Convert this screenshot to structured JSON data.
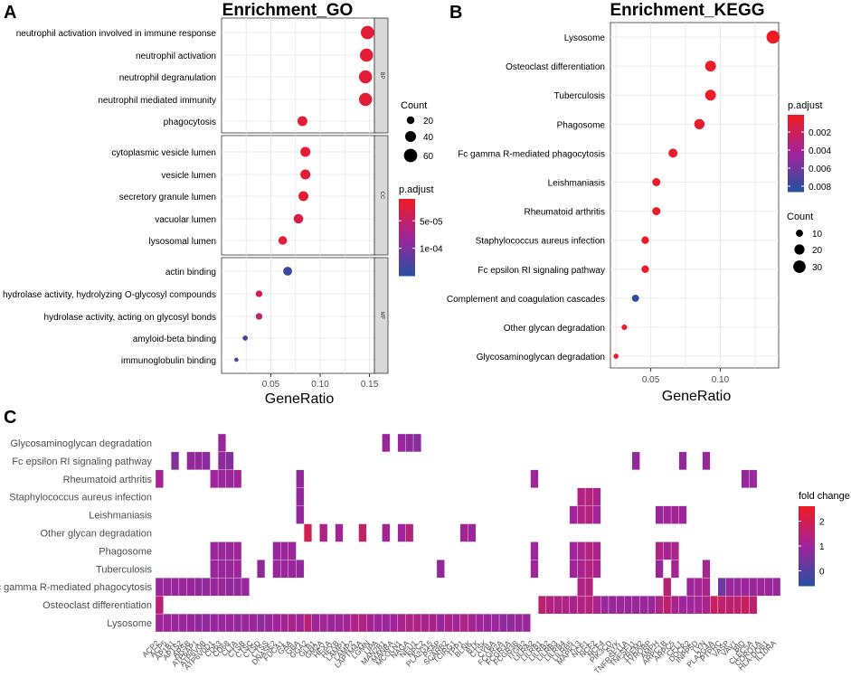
{
  "panels": {
    "a": "A",
    "b": "B",
    "c": "C"
  },
  "colors": {
    "high": "#ee1c25",
    "mid": "#a0249a",
    "low": "#2a4fa3",
    "mid2": "#7a2d9b"
  },
  "chart_data": [
    {
      "type": "scatter",
      "title": "Enrichment_GO",
      "xlabel": "GeneRatio",
      "xlim": [
        0.0,
        0.155
      ],
      "xticks": [
        "0.05",
        "0.10",
        "0.15"
      ],
      "xtick_values": [
        0.05,
        0.1,
        0.15
      ],
      "facets": [
        {
          "name": "BP",
          "terms": [
            {
              "label": "neutrophil activation involved in immune response",
              "x": 0.148,
              "count": 60,
              "p": 2e-05
            },
            {
              "label": "neutrophil activation",
              "x": 0.147,
              "count": 59,
              "p": 2e-05
            },
            {
              "label": "neutrophil degranulation",
              "x": 0.146,
              "count": 58,
              "p": 2e-05
            },
            {
              "label": "neutrophil mediated immunity",
              "x": 0.146,
              "count": 58,
              "p": 2e-05
            },
            {
              "label": "phagocytosis",
              "x": 0.082,
              "count": 33,
              "p": 2e-05
            }
          ]
        },
        {
          "name": "CC",
          "terms": [
            {
              "label": "cytoplasmic vesicle lumen",
              "x": 0.085,
              "count": 34,
              "p": 2e-05
            },
            {
              "label": "vesicle lumen",
              "x": 0.085,
              "count": 34,
              "p": 2e-05
            },
            {
              "label": "secretory granule lumen",
              "x": 0.083,
              "count": 33,
              "p": 2e-05
            },
            {
              "label": "vacuolar lumen",
              "x": 0.078,
              "count": 31,
              "p": 3e-05
            },
            {
              "label": "lysosomal lumen",
              "x": 0.062,
              "count": 25,
              "p": 2e-05
            }
          ]
        },
        {
          "name": "MF",
          "terms": [
            {
              "label": "actin binding",
              "x": 0.067,
              "count": 27,
              "p": 0.00014
            },
            {
              "label": "hydrolase activity, hydrolyzing O-glycosyl compounds",
              "x": 0.038,
              "count": 15,
              "p": 3e-05
            },
            {
              "label": "hydrolase activity, acting on glycosyl bonds",
              "x": 0.038,
              "count": 15,
              "p": 5e-05
            },
            {
              "label": "amyloid-beta binding",
              "x": 0.024,
              "count": 9,
              "p": 0.00013
            },
            {
              "label": "immunoglobulin binding",
              "x": 0.015,
              "count": 6,
              "p": 0.00013
            }
          ]
        }
      ],
      "size_legend": {
        "title": "Count",
        "values": [
          20,
          40,
          60
        ],
        "labels": [
          "20",
          "40",
          "60"
        ]
      },
      "color_legend": {
        "title": "p.adjust",
        "range": [
          1e-05,
          0.00015
        ],
        "labels": [
          "5e-05",
          "1e-04"
        ],
        "values": [
          5e-05,
          0.0001
        ]
      }
    },
    {
      "type": "scatter",
      "title": "Enrichment_KEGG",
      "xlabel": "GeneRatio",
      "xlim": [
        0.021,
        0.142
      ],
      "xticks": [
        "0.05",
        "0.10"
      ],
      "xtick_values": [
        0.05,
        0.1
      ],
      "terms": [
        {
          "label": "Lysosome",
          "x": 0.138,
          "count": 34,
          "p": 0.0001
        },
        {
          "label": "Osteoclast differentiation",
          "x": 0.093,
          "count": 23,
          "p": 0.0002
        },
        {
          "label": "Tuberculosis",
          "x": 0.093,
          "count": 23,
          "p": 0.0002
        },
        {
          "label": "Phagosome",
          "x": 0.085,
          "count": 21,
          "p": 0.0005
        },
        {
          "label": "Fc gamma R-mediated phagocytosis",
          "x": 0.066,
          "count": 16,
          "p": 0.0004
        },
        {
          "label": "Leishmaniasis",
          "x": 0.054,
          "count": 13,
          "p": 0.0003
        },
        {
          "label": "Rheumatoid arthritis",
          "x": 0.054,
          "count": 13,
          "p": 0.0003
        },
        {
          "label": "Staphylococcus aureus infection",
          "x": 0.046,
          "count": 11,
          "p": 0.0003
        },
        {
          "label": "Fc epsilon RI signaling pathway",
          "x": 0.046,
          "count": 11,
          "p": 0.0003
        },
        {
          "label": "Complement and coagulation cascades",
          "x": 0.039,
          "count": 10,
          "p": 0.0085
        },
        {
          "label": "Other glycan degradation",
          "x": 0.031,
          "count": 6,
          "p": 0.0004
        },
        {
          "label": "Glycosaminoglycan degradation",
          "x": 0.025,
          "count": 5,
          "p": 0.0004
        }
      ],
      "size_legend": {
        "title": "Count",
        "values": [
          10,
          20,
          30
        ],
        "labels": [
          "10",
          "20",
          "30"
        ]
      },
      "color_legend": {
        "title": "p.adjust",
        "range": [
          0.0001,
          0.0086
        ],
        "labels": [
          "0.002",
          "0.004",
          "0.006",
          "0.008"
        ],
        "values": [
          0.002,
          0.004,
          0.006,
          0.008
        ]
      }
    },
    {
      "type": "heatmap",
      "title": "",
      "legend_title": "fold change",
      "range": [
        -0.6,
        2.6
      ],
      "legend_labels": [
        "2",
        "1",
        "0"
      ],
      "legend_values": [
        2,
        1,
        0
      ],
      "rows": [
        "Glycosaminoglycan degradation",
        "Fc epsilon RI signaling pathway",
        "Rheumatoid arthritis",
        "Staphylococcus aureus infection",
        "Leishmaniasis",
        "Other glycan degradation",
        "Phagosome",
        "Tuberculosis",
        "Fc gamma R-mediated phagocytosis",
        "Osteoclast differentiation",
        "Lysosome"
      ],
      "genes": [
        "ACP2",
        "ACP5",
        "AP1B1",
        "AP1S2",
        "ARSB",
        "ATP6AP1",
        "ATP6V0B",
        "ATP6V0D1",
        "CD63",
        "CD68",
        "CLTA",
        "CTSB",
        "CTSC",
        "CTSD",
        "CTSS",
        "DNASE2",
        "FUCA1",
        "GAA",
        "GBA",
        "GGA2",
        "GLB1",
        "GM2A",
        "HEXA",
        "HEXB",
        "LAMP1",
        "LAMP2",
        "LAPTM4A",
        "LGMN",
        "LIPA",
        "MAN2B1",
        "MANBA",
        "MCOLN1",
        "NAGA",
        "NEU1",
        "NPC2",
        "PLA2G15",
        "PSAP",
        "SCARB2",
        "TCIRG1",
        "TPP1",
        "BLNK",
        "BTK",
        "CTSK",
        "CYBA",
        "FCGR2A",
        "FCGR3A",
        "FCGR3B",
        "ITGB2",
        "LILRA2",
        "LILRB1",
        "LILRB2",
        "LILRB3",
        "LILRB4",
        "LILRB5",
        "MAPK13",
        "NCF1",
        "NCF2",
        "NCF4",
        "PIK3CD",
        "SYK",
        "TNFRSF11A",
        "TNFSF11",
        "TREM2",
        "TYROBP",
        "AMPH",
        "ARPC1B",
        "ARPC5",
        "CFL1",
        "DOCK2",
        "INPP5D",
        "LYN",
        "PLA2G4A",
        "PTPRC",
        "VASP",
        "VAV1",
        "BID",
        "CLEC5A",
        "CORO1A",
        "HLA-DQB1",
        "IL10RA"
      ],
      "cells": [
        [
          [
            8,
            0.9
          ],
          [
            29,
            0.9
          ],
          [
            31,
            0.9
          ],
          [
            32,
            0.8
          ],
          [
            33,
            0.7
          ]
        ],
        [
          [
            61,
            0.8
          ],
          [
            67,
            0.8
          ],
          [
            70,
            0.9
          ],
          [
            82,
            0.6
          ],
          [
            84,
            0.8
          ],
          [
            85,
            0.8
          ],
          [
            86,
            0.7
          ],
          [
            88,
            0.8
          ],
          [
            89,
            0.6
          ]
        ],
        [
          [
            0,
            1.1
          ],
          [
            7,
            1.0
          ],
          [
            8,
            0.9
          ],
          [
            9,
            0.9
          ],
          [
            10,
            1.0
          ],
          [
            48,
            1.0
          ],
          [
            75,
            0.8
          ],
          [
            76,
            0.9
          ],
          [
            98,
            0.8
          ]
        ],
        [
          [
            54,
            1.3
          ],
          [
            55,
            1.4
          ],
          [
            56,
            1.2
          ],
          [
            98,
            0.8
          ]
        ],
        [
          [
            53,
            1.0
          ],
          [
            54,
            1.3
          ],
          [
            55,
            1.4
          ],
          [
            56,
            1.0
          ],
          [
            64,
            0.9
          ],
          [
            65,
            1.0
          ],
          [
            66,
            1.1
          ],
          [
            67,
            1.0
          ],
          [
            98,
            0.8
          ]
        ],
        [
          [
            19,
            2.0
          ],
          [
            21,
            1.3
          ],
          [
            23,
            1.1
          ],
          [
            26,
            1.7
          ],
          [
            29,
            1.1
          ],
          [
            31,
            1.0
          ],
          [
            32,
            1.4
          ],
          [
            39,
            1.1
          ],
          [
            40,
            0.9
          ]
        ],
        [
          [
            7,
            0.9
          ],
          [
            8,
            0.9
          ],
          [
            9,
            0.9
          ],
          [
            10,
            1.0
          ],
          [
            17,
            0.9
          ],
          [
            48,
            1.0
          ],
          [
            53,
            1.0
          ],
          [
            54,
            1.2
          ],
          [
            55,
            1.4
          ],
          [
            56,
            1.2
          ],
          [
            64,
            1.3
          ],
          [
            65,
            1.1
          ],
          [
            66,
            1.2
          ],
          [
            95,
            0.9
          ],
          [
            96,
            0.9
          ],
          [
            97,
            0.9
          ]
        ],
        [
          [
            7,
            0.9
          ],
          [
            8,
            0.9
          ],
          [
            9,
            0.9
          ],
          [
            10,
            1.0
          ],
          [
            15,
            0.9
          ],
          [
            17,
            0.9
          ],
          [
            36,
            0.8
          ],
          [
            48,
            1.0
          ],
          [
            53,
            1.0
          ],
          [
            54,
            1.2
          ],
          [
            55,
            1.4
          ],
          [
            56,
            1.2
          ],
          [
            64,
            0.9
          ],
          [
            66,
            1.1
          ],
          [
            70,
            1.1
          ],
          [
            93,
            0.8
          ],
          [
            95,
            0.9
          ],
          [
            96,
            0.9
          ],
          [
            97,
            0.9
          ],
          [
            98,
            0.8
          ]
        ],
        [
          [
            54,
            1.3
          ],
          [
            55,
            1.4
          ],
          [
            65,
            1.5
          ],
          [
            68,
            1.0
          ],
          [
            69,
            1.1
          ],
          [
            70,
            1.2
          ],
          [
            72,
            0.3
          ],
          [
            73,
            0.9
          ],
          [
            74,
            0.9
          ],
          [
            75,
            0.9
          ],
          [
            76,
            0.9
          ],
          [
            77,
            0.9
          ],
          [
            78,
            0.9
          ],
          [
            79,
            0.9
          ],
          [
            80,
            0.9
          ],
          [
            81,
            0.9
          ],
          [
            82,
            0.9
          ],
          [
            83,
            0.9
          ],
          [
            84,
            0.9
          ],
          [
            85,
            0.8
          ],
          [
            86,
            0.8
          ],
          [
            87,
            0.9
          ],
          [
            88,
            0.9
          ],
          [
            89,
            0.8
          ],
          [
            90,
            0.8
          ],
          [
            91,
            0.9
          ]
        ],
        [
          [
            0,
            1.5
          ],
          [
            49,
            1.6
          ],
          [
            50,
            1.4
          ],
          [
            51,
            1.3
          ],
          [
            52,
            1.3
          ],
          [
            53,
            1.2
          ],
          [
            54,
            1.3
          ],
          [
            55,
            1.4
          ],
          [
            56,
            1.2
          ],
          [
            57,
            0.9
          ],
          [
            58,
            0.9
          ],
          [
            59,
            0.9
          ],
          [
            60,
            0.9
          ],
          [
            61,
            0.9
          ],
          [
            62,
            0.9
          ],
          [
            63,
            0.9
          ],
          [
            64,
            1.3
          ],
          [
            65,
            1.6
          ],
          [
            66,
            1.2
          ],
          [
            67,
            1.0
          ],
          [
            68,
            1.0
          ],
          [
            69,
            1.1
          ],
          [
            70,
            1.2
          ],
          [
            71,
            1.8
          ],
          [
            72,
            1.7
          ],
          [
            73,
            1.6
          ],
          [
            74,
            1.6
          ],
          [
            75,
            1.8
          ],
          [
            76,
            1.6
          ]
        ],
        [
          [
            0,
            1.0
          ],
          [
            1,
            1.0
          ],
          [
            2,
            0.9
          ],
          [
            3,
            0.9
          ],
          [
            4,
            0.9
          ],
          [
            5,
            0.8
          ],
          [
            6,
            0.8
          ],
          [
            7,
            0.9
          ],
          [
            8,
            0.9
          ],
          [
            9,
            0.9
          ],
          [
            10,
            0.8
          ],
          [
            11,
            0.9
          ],
          [
            12,
            0.9
          ],
          [
            13,
            0.8
          ],
          [
            14,
            0.9
          ],
          [
            15,
            1.0
          ],
          [
            16,
            1.1
          ],
          [
            17,
            1.2
          ],
          [
            18,
            1.0
          ],
          [
            19,
            1.5
          ],
          [
            20,
            1.0
          ],
          [
            21,
            1.1
          ],
          [
            22,
            0.9
          ],
          [
            23,
            1.0
          ],
          [
            24,
            1.1
          ],
          [
            25,
            1.3
          ],
          [
            26,
            1.3
          ],
          [
            27,
            1.1
          ],
          [
            28,
            1.0
          ],
          [
            29,
            0.9
          ],
          [
            30,
            1.0
          ],
          [
            31,
            1.2
          ],
          [
            32,
            1.3
          ],
          [
            33,
            1.3
          ],
          [
            34,
            1.2
          ],
          [
            35,
            1.2
          ],
          [
            36,
            0.9
          ],
          [
            37,
            1.2
          ],
          [
            38,
            1.1
          ],
          [
            39,
            1.3
          ],
          [
            40,
            1.1
          ],
          [
            41,
            1.0
          ],
          [
            42,
            0.9
          ],
          [
            43,
            0.9
          ],
          [
            44,
            0.8
          ],
          [
            45,
            0.8
          ],
          [
            46,
            0.9
          ],
          [
            47,
            0.9
          ]
        ]
      ]
    }
  ]
}
